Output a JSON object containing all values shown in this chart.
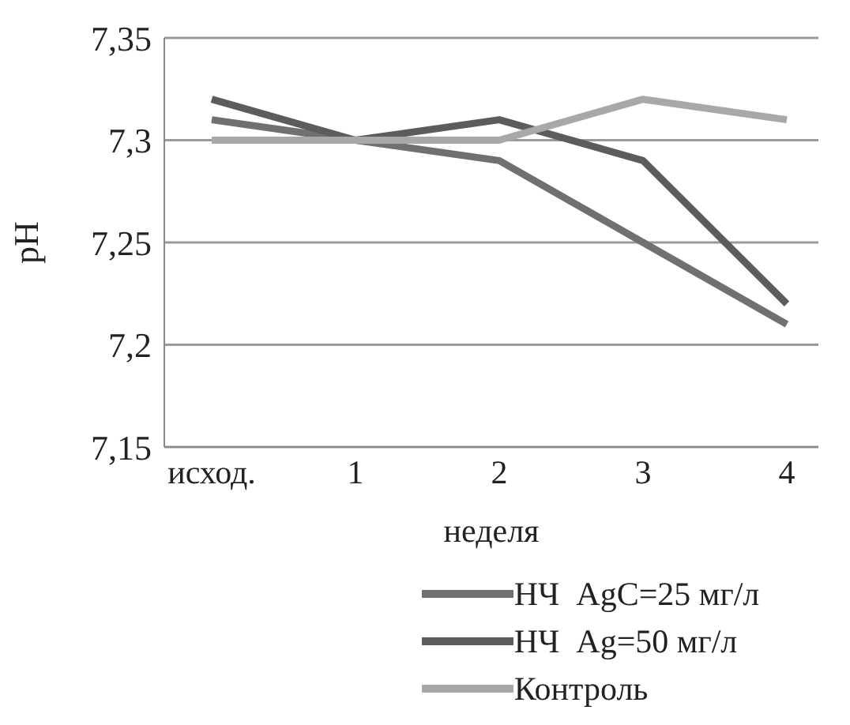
{
  "chart_data": {
    "type": "line",
    "xlabel": "неделя",
    "ylabel": "pH",
    "categories": [
      "исход.",
      "1",
      "2",
      "3",
      "4"
    ],
    "series": [
      {
        "name": "НЧ  AgC=25 мг/л",
        "color": "#707070",
        "values": [
          7.31,
          7.3,
          7.29,
          7.25,
          7.21
        ]
      },
      {
        "name": "НЧ  Ag=50 мг/л",
        "color": "#5c5c5c",
        "values": [
          7.32,
          7.3,
          7.31,
          7.29,
          7.22
        ]
      },
      {
        "name": "Контроль",
        "color": "#a8a8a8",
        "values": [
          7.3,
          7.3,
          7.3,
          7.32,
          7.31
        ]
      }
    ],
    "ylim": [
      7.15,
      7.35
    ],
    "yticks": [
      {
        "value": 7.15,
        "label": "7,15"
      },
      {
        "value": 7.2,
        "label": "7,2"
      },
      {
        "value": 7.25,
        "label": "7,25"
      },
      {
        "value": 7.3,
        "label": "7,3"
      },
      {
        "value": 7.35,
        "label": "7,35"
      }
    ],
    "grid": "y",
    "legend": "bottom",
    "marker": "none",
    "line_style": "solid"
  }
}
